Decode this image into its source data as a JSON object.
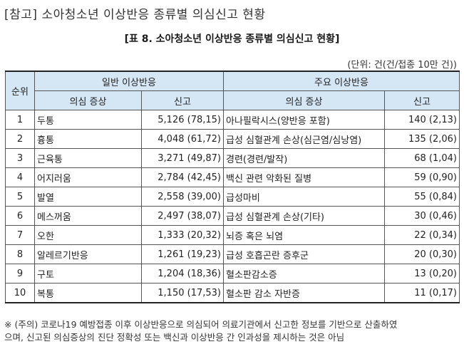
{
  "heading": "[참고] 소아청소년 이상반응 종류별 의심신고 현황",
  "table_title": "[표 8. 소아청소년 이상반응 종류별 의심신고 현황]",
  "unit_note": "(단위: 건(건/접종 10만 건))",
  "headers": {
    "rank": "순위",
    "general_group": "일반 이상반응",
    "major_group": "주요 이상반응",
    "symptom": "의심 증상",
    "report": "신고"
  },
  "rows": [
    {
      "rank": "1",
      "g_sym": "두통",
      "g_rep": "5,126 (78,15)",
      "m_sym": "아나필락시스(양반응 포함)",
      "m_rep": "140 (2,13)"
    },
    {
      "rank": "2",
      "g_sym": "흉통",
      "g_rep": "4,048 (61,72)",
      "m_sym": "급성 심혈관계 손상(심근염/심낭염)",
      "m_rep": "135 (2,06)"
    },
    {
      "rank": "3",
      "g_sym": "근육통",
      "g_rep": "3,271 (49,87)",
      "m_sym": "경련(경련/발작)",
      "m_rep": "68 (1,04)"
    },
    {
      "rank": "4",
      "g_sym": "어지러움",
      "g_rep": "2,784 (42,45)",
      "m_sym": "백신 관련 악화된 질병",
      "m_rep": "59 (0,90)"
    },
    {
      "rank": "5",
      "g_sym": "발열",
      "g_rep": "2,558 (39,00)",
      "m_sym": "급성마비",
      "m_rep": "55 (0,84)"
    },
    {
      "rank": "6",
      "g_sym": "메스꺼움",
      "g_rep": "2,497 (38,07)",
      "m_sym": "급성 심혈관계 손상(기타)",
      "m_rep": "30 (0,46)"
    },
    {
      "rank": "7",
      "g_sym": "오한",
      "g_rep": "1,333 (20,32)",
      "m_sym": "뇌증 혹은 뇌염",
      "m_rep": "22 (0,34)"
    },
    {
      "rank": "8",
      "g_sym": "알레르기반응",
      "g_rep": "1,261 (19,23)",
      "m_sym": "급성 호흡곤란 증후군",
      "m_rep": "20 (0,30)"
    },
    {
      "rank": "9",
      "g_sym": "구토",
      "g_rep": "1,204 (18,36)",
      "m_sym": "혈소판감소증",
      "m_rep": "13 (0,20)"
    },
    {
      "rank": "10",
      "g_sym": "복통",
      "g_rep": "1,150 (17,53)",
      "m_sym": "혈소판 감소 자반증",
      "m_rep": "11 (0,17)"
    }
  ],
  "footnote_line1": "※ (주의) 코로나19 예방접종 이후 이상반응으로 의심되어 의료기관에서 신고한 정보를 기반으로 산출하였",
  "footnote_line2": "으며, 신고된 의심증상의 진단 정확성 또는 백신과 이상반응 간 인과성을 제시하는 것은 아님"
}
